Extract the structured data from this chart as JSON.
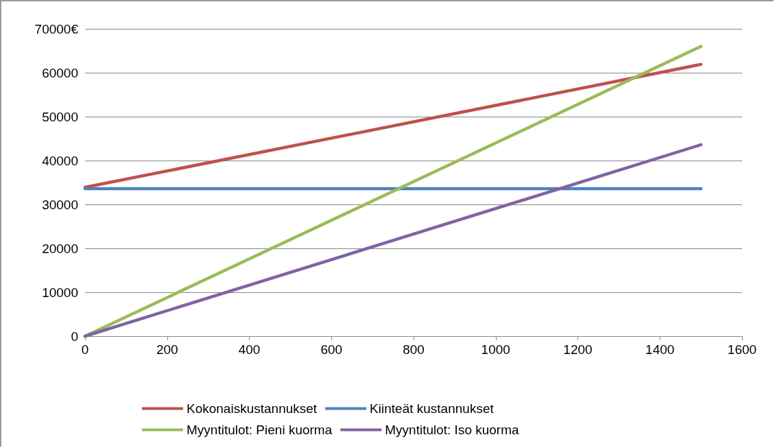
{
  "chart_data": {
    "type": "line",
    "x": [
      0,
      1500
    ],
    "series": [
      {
        "name": "Kokonaiskustannukset",
        "color": "#c0504d",
        "values": [
          33900,
          61900
        ]
      },
      {
        "name": "Kiinteät kustannukset",
        "color": "#4f81bd",
        "values": [
          33600,
          33600
        ]
      },
      {
        "name": "Myyntitulot: Pieni kuorma",
        "color": "#9bbb59",
        "values": [
          0,
          66000
        ]
      },
      {
        "name": "Myyntitulot: Iso kuorma",
        "color": "#8064a2",
        "values": [
          0,
          43600
        ]
      }
    ],
    "xlim": [
      0,
      1600
    ],
    "xticks": [
      0,
      200,
      400,
      600,
      800,
      1000,
      1200,
      1400,
      1600
    ],
    "ylim": [
      0,
      70000
    ],
    "yticks": [
      0,
      10000,
      20000,
      30000,
      40000,
      50000,
      60000,
      {
        "value": 70000,
        "label": "70000€"
      }
    ],
    "grid": "y",
    "legend": "bottom",
    "marker": "none",
    "line_style": "solid"
  }
}
